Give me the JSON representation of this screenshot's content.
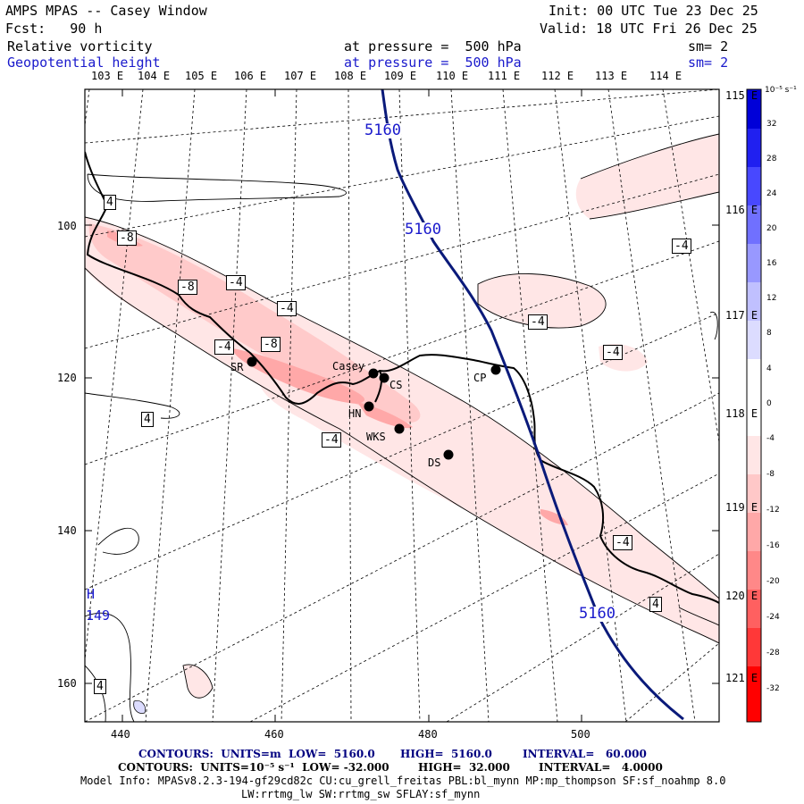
{
  "header": {
    "title": "AMPS MPAS -- Casey Window",
    "fcst": "Fcst:   90 h",
    "init": "Init: 00 UTC Tue 23 Dec 25",
    "valid": "Valid: 18 UTC Fri 26 Dec 25",
    "field1": "Relative vorticity",
    "field1_level": "at pressure =  500 hPa",
    "field1_sm": "sm= 2",
    "field2": "Geopotential height",
    "field2_level": "at pressure =  500 hPa",
    "field2_sm": "sm= 2"
  },
  "colors": {
    "frame": "#000000",
    "height_contour": "#0a1a7a",
    "coast": "#000000",
    "graticule": "#000000",
    "positive_scale": [
      "#0000e0",
      "#2a2aff",
      "#5a5aff",
      "#8a8aff",
      "#b8b8ff",
      "#dcdcff",
      "#ffffff"
    ],
    "negative_scale": [
      "#ffffff",
      "#ffe8e8",
      "#ffcaca",
      "#ffa8a8",
      "#ff8484",
      "#ff5c5c",
      "#ff3030",
      "#ff0000"
    ]
  },
  "top_lon_labels": [
    "103 E",
    "104 E",
    "105 E",
    "106 E",
    "107 E",
    "108 E",
    "109 E",
    "110 E",
    "111 E",
    "112 E",
    "113 E",
    "114 E"
  ],
  "right_lon_labels": [
    "115 E",
    "116 E",
    "117 E",
    "118 E",
    "119 E",
    "120 E",
    "121 E"
  ],
  "left_axis": [
    "100",
    "120",
    "140",
    "160"
  ],
  "bottom_axis": [
    "440",
    "460",
    "480",
    "500"
  ],
  "contour_labels_height": [
    "5160",
    "5160",
    "5160"
  ],
  "contour_labels_vort": [
    "4",
    "-8",
    "-8",
    "-4",
    "-4",
    "-4",
    "-4",
    "-8",
    "4",
    "4",
    "-4",
    "-4",
    "-4",
    "-4",
    "4"
  ],
  "stations": [
    "Casey",
    "CS",
    "CP",
    "SR",
    "HN",
    "WKS",
    "DS"
  ],
  "high_marker": "H",
  "high_value": "149",
  "colorbar": {
    "unit": "10⁻⁵ s⁻¹",
    "labels": [
      "32",
      "28",
      "24",
      "20",
      "16",
      "12",
      "8",
      "4",
      "0",
      "-4",
      "-8",
      "-12",
      "-16",
      "-20",
      "-24",
      "-28",
      "-32"
    ]
  },
  "footer": {
    "line1_a": "CONTOURS:  UNITS=m  LOW=  5160.0",
    "line1_b": "HIGH=  5160.0",
    "line1_c": "INTERVAL=   60.000",
    "line2_a": "CONTOURS:  UNITS=10⁻⁵ s⁻¹  LOW= -32.000",
    "line2_b": "HIGH=  32.000",
    "line2_c": "INTERVAL=   4.0000",
    "model_info": "Model Info: MPASv8.2.3-194-gf29cd82c CU:cu_grell_freitas PBL:bl_mynn MP:mp_thompson SF:sf_noahmp 8.0",
    "model_info2": "LW:rrtmg_lw SW:rrtmg_sw SFLAY:sf_mynn"
  }
}
